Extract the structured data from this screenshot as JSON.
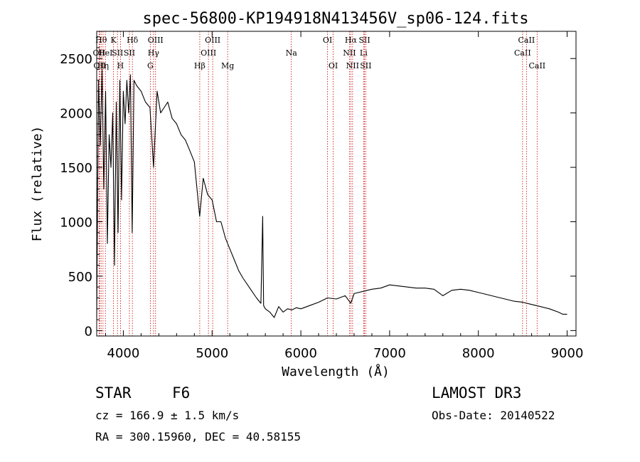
{
  "chart_data": {
    "type": "line",
    "title": "spec-56800-KP194918N413456V_sp06-124.fits",
    "xlabel": "Wavelength (Å)",
    "ylabel": "Flux (relative)",
    "xlim": [
      3700,
      9100
    ],
    "ylim": [
      -50,
      2750
    ],
    "xticks": [
      4000,
      5000,
      6000,
      7000,
      8000,
      9000
    ],
    "yticks": [
      0,
      500,
      1000,
      1500,
      2000,
      2500
    ],
    "series": [
      {
        "name": "flux",
        "x": [
          3700,
          3720,
          3740,
          3760,
          3780,
          3800,
          3820,
          3840,
          3860,
          3880,
          3900,
          3920,
          3940,
          3960,
          3980,
          4000,
          4020,
          4040,
          4060,
          4080,
          4100,
          4120,
          4150,
          4200,
          4250,
          4300,
          4340,
          4380,
          4420,
          4460,
          4500,
          4550,
          4600,
          4650,
          4700,
          4750,
          4800,
          4860,
          4900,
          4950,
          5000,
          5050,
          5100,
          5150,
          5200,
          5250,
          5300,
          5350,
          5400,
          5450,
          5500,
          5550,
          5570,
          5580,
          5600,
          5650,
          5700,
          5750,
          5800,
          5850,
          5900,
          5950,
          6000,
          6100,
          6200,
          6300,
          6400,
          6500,
          6563,
          6600,
          6700,
          6800,
          6900,
          7000,
          7100,
          7200,
          7300,
          7400,
          7500,
          7600,
          7700,
          7800,
          7900,
          8000,
          8100,
          8200,
          8300,
          8400,
          8500,
          8600,
          8700,
          8800,
          8900,
          8950,
          9000
        ],
        "y": [
          120,
          2300,
          1700,
          2400,
          1300,
          2200,
          800,
          1800,
          1500,
          2000,
          600,
          2100,
          900,
          2300,
          1200,
          2200,
          1900,
          2300,
          2000,
          2350,
          900,
          2300,
          2250,
          2200,
          2100,
          2050,
          1500,
          2200,
          2000,
          2050,
          2100,
          1950,
          1900,
          1800,
          1750,
          1650,
          1550,
          1050,
          1400,
          1250,
          1200,
          1000,
          1000,
          850,
          750,
          650,
          550,
          480,
          420,
          360,
          300,
          250,
          1050,
          230,
          200,
          170,
          120,
          220,
          170,
          200,
          190,
          210,
          200,
          230,
          260,
          300,
          290,
          320,
          250,
          340,
          360,
          380,
          390,
          420,
          410,
          400,
          390,
          390,
          380,
          320,
          370,
          380,
          370,
          350,
          330,
          310,
          290,
          270,
          260,
          240,
          220,
          200,
          170,
          150,
          150
        ]
      }
    ],
    "lines": [
      {
        "wl": 3727,
        "label": "OII",
        "row": 2
      },
      {
        "wl": 3734,
        "label": "OII",
        "row": 3
      },
      {
        "wl": 3750,
        "label": "Hθ",
        "row": 1
      },
      {
        "wl": 3771,
        "label": "Hη",
        "row": 3
      },
      {
        "wl": 3798,
        "label": "HeI",
        "row": 2
      },
      {
        "wl": 3889,
        "label": "K",
        "row": 1
      },
      {
        "wl": 3934,
        "label": "SII",
        "row": 2
      },
      {
        "wl": 3968,
        "label": "H",
        "row": 3
      },
      {
        "wl": 4068,
        "label": "SII",
        "row": 2
      },
      {
        "wl": 4102,
        "label": "Hδ",
        "row": 1
      },
      {
        "wl": 4304,
        "label": "G",
        "row": 3
      },
      {
        "wl": 4340,
        "label": "Hγ",
        "row": 2
      },
      {
        "wl": 4363,
        "label": "OIII",
        "row": 1
      },
      {
        "wl": 4861,
        "label": "Hβ",
        "row": 3
      },
      {
        "wl": 4959,
        "label": "OIII",
        "row": 2
      },
      {
        "wl": 5007,
        "label": "OIII",
        "row": 1
      },
      {
        "wl": 5175,
        "label": "Mg",
        "row": 3
      },
      {
        "wl": 5893,
        "label": "Na",
        "row": 2
      },
      {
        "wl": 6300,
        "label": "OI",
        "row": 1
      },
      {
        "wl": 6364,
        "label": "OI",
        "row": 3
      },
      {
        "wl": 6548,
        "label": "NII",
        "row": 2
      },
      {
        "wl": 6563,
        "label": "Hα",
        "row": 1
      },
      {
        "wl": 6583,
        "label": "NII",
        "row": 3
      },
      {
        "wl": 6707,
        "label": "Li",
        "row": 2
      },
      {
        "wl": 6717,
        "label": "SII",
        "row": 1
      },
      {
        "wl": 6731,
        "label": "SII",
        "row": 3
      },
      {
        "wl": 8498,
        "label": "CaII",
        "row": 2
      },
      {
        "wl": 8542,
        "label": "CaII",
        "row": 1
      },
      {
        "wl": 8662,
        "label": "CaII",
        "row": 3
      }
    ]
  },
  "info": {
    "class": "STAR",
    "subclass": "F6",
    "survey": "LAMOST DR3",
    "cz": "cz = 166.9 ± 1.5 km/s",
    "obs_date": "Obs-Date: 20140522",
    "coords": "RA = 300.15960, DEC =  40.58155"
  }
}
